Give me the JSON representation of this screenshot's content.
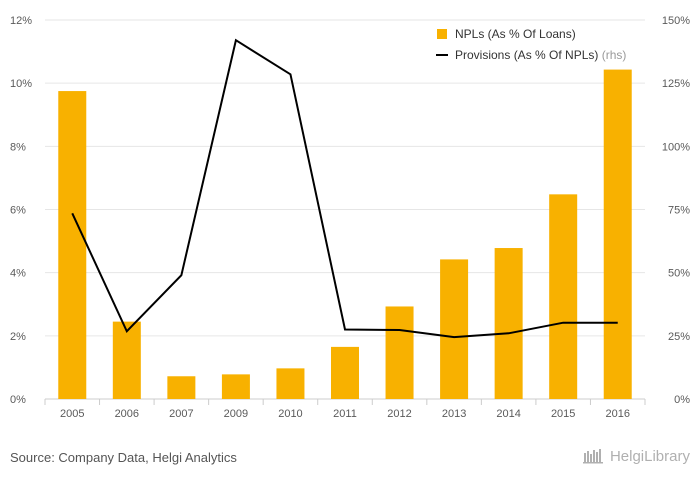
{
  "chart_data": {
    "type": "bar+line",
    "categories": [
      "2005",
      "2006",
      "2007",
      "2009",
      "2010",
      "2011",
      "2012",
      "2013",
      "2014",
      "2015",
      "2016"
    ],
    "series": [
      {
        "name": "NPLs (As % Of Loans)",
        "kind": "bar",
        "axis": "left",
        "color": "#f8b100",
        "values": [
          9.75,
          2.45,
          0.72,
          0.78,
          0.97,
          1.65,
          2.93,
          4.42,
          4.78,
          6.48,
          10.43
        ]
      },
      {
        "name": "Provisions (As % Of NPLs)",
        "kind": "line",
        "axis": "right",
        "color": "#000000",
        "values": [
          73.5,
          26.8,
          49.0,
          142.0,
          128.5,
          27.5,
          27.3,
          24.5,
          26.0,
          30.2,
          30.2
        ]
      }
    ],
    "left_axis": {
      "min": 0,
      "max": 12,
      "ticks": [
        "0%",
        "2%",
        "4%",
        "6%",
        "8%",
        "10%",
        "12%"
      ]
    },
    "right_axis": {
      "min": 0,
      "max": 150,
      "ticks": [
        "0%",
        "25%",
        "50%",
        "75%",
        "100%",
        "125%",
        "150%"
      ]
    },
    "grid": true,
    "legend": {
      "placement": "top-right",
      "items": [
        "NPLs (As % Of Loans)",
        "Provisions (As % Of NPLs)"
      ],
      "rhs_note": "(rhs)"
    }
  },
  "footer": {
    "source": "Source: Company Data, Helgi Analytics",
    "brand": "HelgiLibrary"
  }
}
